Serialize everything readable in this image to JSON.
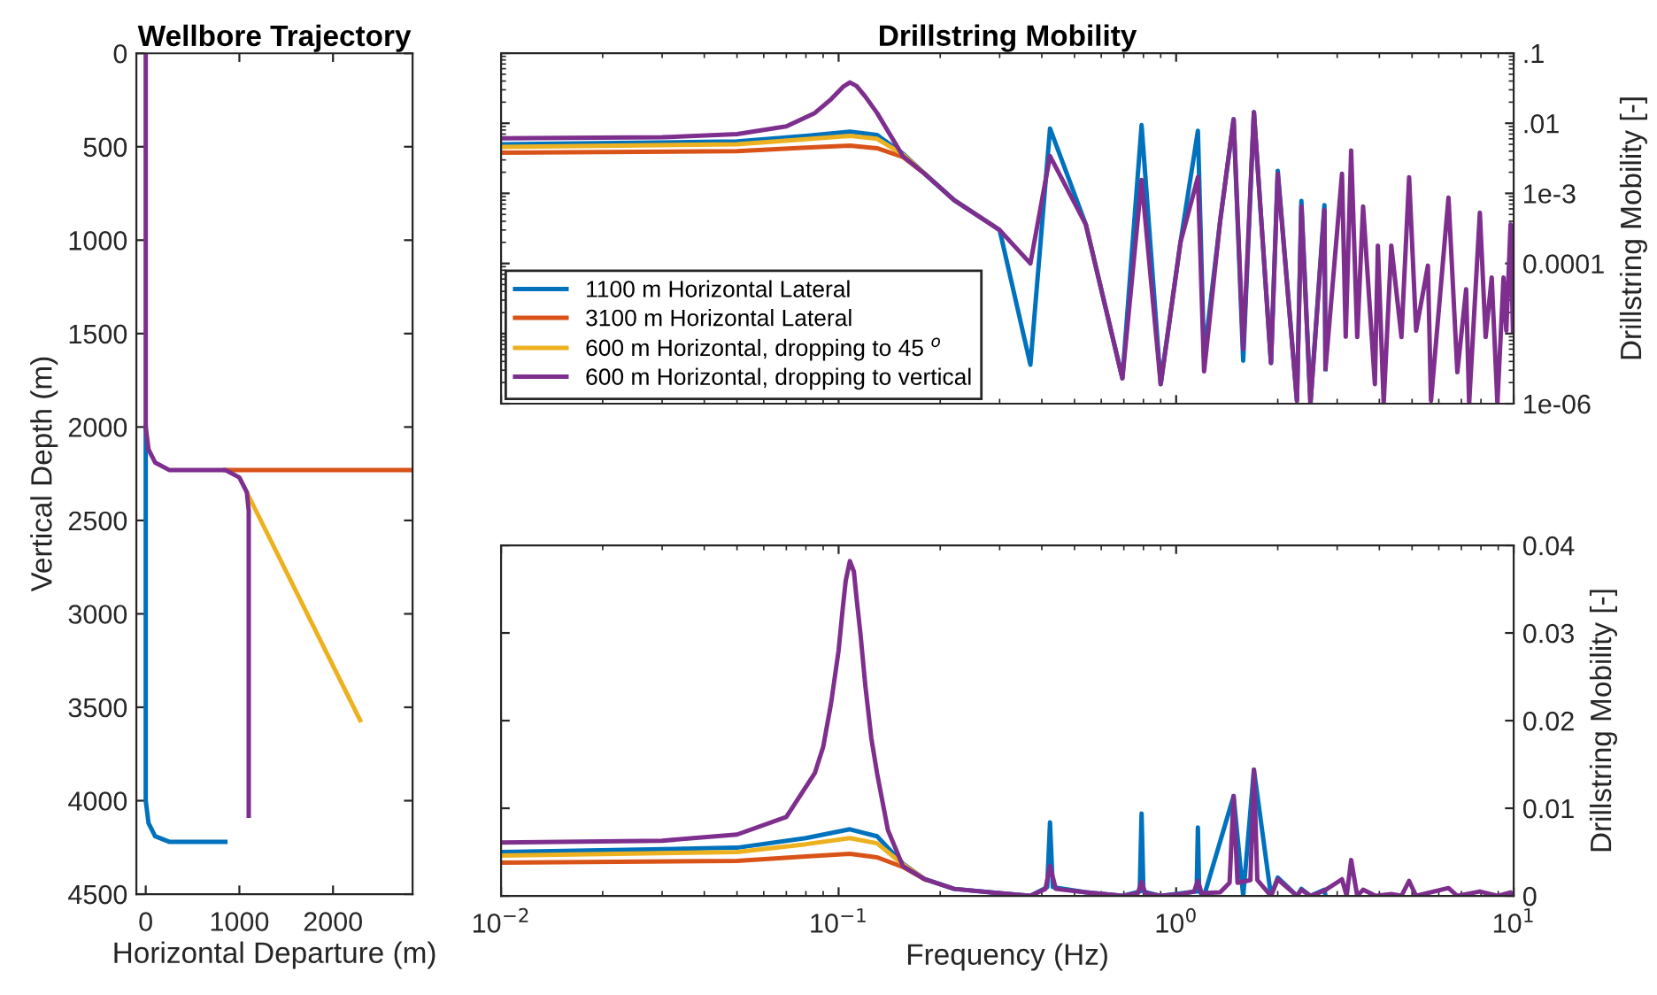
{
  "chart_data": [
    {
      "type": "line",
      "title": "Wellbore Trajectory",
      "xlabel": "Horizontal Departure (m)",
      "ylabel": "Vertical Depth (m)",
      "xlim": [
        -100,
        2850
      ],
      "ylim": [
        4500,
        0
      ],
      "xticks": [
        0,
        1000,
        2000
      ],
      "yticks": [
        0,
        500,
        1000,
        1500,
        2000,
        2500,
        3000,
        3500,
        4000,
        4500
      ],
      "grid": false,
      "legend": false,
      "series": [
        {
          "color": "#0072bd",
          "x": [
            0,
            0,
            30,
            100,
            250,
            850
          ],
          "values": [
            2000,
            4000,
            4120,
            4190,
            4220,
            4220
          ]
        },
        {
          "color": "#d95319",
          "x": [
            850,
            2850
          ],
          "values": [
            2230,
            2230
          ]
        },
        {
          "color": "#edb120",
          "x": [
            1080,
            2290
          ],
          "values": [
            2350,
            3570
          ]
        },
        {
          "color": "#7e2f8e",
          "x": [
            0,
            0,
            30,
            100,
            250,
            850,
            1000,
            1080,
            1100,
            1100
          ],
          "values": [
            0,
            2000,
            2120,
            2190,
            2230,
            2230,
            2270,
            2350,
            2450,
            4080
          ]
        }
      ]
    },
    {
      "type": "line",
      "title": "Drillstring Mobility",
      "y2label": "Drillstring Mobility [-]",
      "log": "xy",
      "xlim": [
        0.01,
        10
      ],
      "ylim": [
        1e-06,
        0.1
      ],
      "xticks": [
        {
          "value": 0.01,
          "label": null
        },
        {
          "value": 0.1,
          "label": null
        },
        {
          "value": 1,
          "label": null
        },
        {
          "value": 10,
          "label": null
        }
      ],
      "yticks": [
        {
          "value": 1e-06,
          "label": "1e-06"
        },
        {
          "value": 1e-05,
          "label": null
        },
        {
          "value": 0.0001,
          "label": "0.0001"
        },
        {
          "value": 0.001,
          "label": "1e-3"
        },
        {
          "value": 0.01,
          "label": ".01"
        },
        {
          "value": 0.1,
          "label": ".1"
        }
      ],
      "tick_labels": "y",
      "grid": false,
      "legend": "bottom left",
      "series": [
        {
          "name": "1100 m Horizontal Lateral",
          "color": "#0072bd",
          "x": [
            0.01,
            0.05,
            0.08,
            0.108,
            0.13,
            0.155,
            0.18,
            0.22,
            0.3,
            0.37,
            0.423,
            0.54,
            0.693,
            0.79,
            0.9,
            1.03,
            1.16,
            1.21,
            1.35,
            1.48,
            1.58,
            1.7,
            1.91,
            2.0,
            2.28,
            2.35,
            2.5,
            2.75,
            2.77
          ],
          "values": [
            0.005,
            0.0055,
            0.0066,
            0.0076,
            0.0068,
            0.0037,
            0.0019,
            0.0008,
            0.0003,
            3.6e-06,
            0.0084,
            0.00036,
            2.3e-06,
            0.0094,
            1.9e-06,
            0.0002,
            0.0078,
            4.6e-06,
            0.0004,
            0.0114,
            4.1e-06,
            0.0144,
            3.8e-06,
            0.0021,
            1.1e-06,
            0.00078,
            1e-06,
            0.00068,
            3.1e-06
          ]
        },
        {
          "name": "3100 m Horizontal Lateral",
          "color": "#d95319",
          "x": [
            0.01,
            0.05,
            0.08,
            0.108,
            0.13,
            0.155,
            0.18
          ],
          "values": [
            0.0038,
            0.004,
            0.0045,
            0.0048,
            0.0044,
            0.0033,
            0.0019
          ]
        },
        {
          "name": "600 m Horizontal, dropping to 45 $^{o}$",
          "color": "#edb120",
          "x": [
            0.01,
            0.05,
            0.08,
            0.108,
            0.13,
            0.155,
            0.18
          ],
          "values": [
            0.0046,
            0.005,
            0.0059,
            0.0066,
            0.006,
            0.0036,
            0.0019
          ]
        },
        {
          "name": "600 m Horizontal, dropping to vertical",
          "color": "#7e2f8e",
          "x": [
            0.01,
            0.03,
            0.05,
            0.07,
            0.085,
            0.095,
            0.103,
            0.108,
            0.113,
            0.12,
            0.13,
            0.155,
            0.18,
            0.22,
            0.3,
            0.37,
            0.423,
            0.54,
            0.693,
            0.79,
            0.9,
            1.03,
            1.16,
            1.21,
            1.35,
            1.48,
            1.58,
            1.7,
            1.91,
            2.0,
            2.28,
            2.35,
            2.5,
            2.75,
            2.77,
            3.1,
            3.18,
            3.3,
            3.44,
            3.58,
            3.88,
            3.96,
            4.12,
            4.34,
            4.65,
            4.9,
            5.14,
            5.57,
            5.69,
            6.41,
            6.81,
            7.23,
            7.38,
            7.94,
            8.26,
            8.61,
            8.95,
            9.33,
            9.51,
            9.79,
            9.95
          ],
          "values": [
            0.0061,
            0.0063,
            0.007,
            0.009,
            0.014,
            0.022,
            0.033,
            0.0382,
            0.034,
            0.024,
            0.014,
            0.0034,
            0.0019,
            0.0008,
            0.0003,
            0.0001,
            0.0034,
            0.00036,
            2.3e-06,
            0.00155,
            1.9e-06,
            0.0002,
            0.0017,
            2.9e-06,
            0.0004,
            0.0114,
            6e-06,
            0.0144,
            3.8e-06,
            0.0019,
            1.1e-06,
            0.00065,
            1e-06,
            0.00058,
            3.1e-06,
            0.0019,
            9e-06,
            0.0041,
            8.9e-06,
            0.00065,
            1.9e-06,
            0.00018,
            1e-06,
            0.00018,
            8.9e-06,
            0.0017,
            1.1e-05,
            9.3e-05,
            1.1e-06,
            0.00087,
            2.8e-06,
            4.3e-05,
            1e-06,
            0.00053,
            8.9e-06,
            6.3e-05,
            1e-06,
            6.3e-05,
            1.1e-05,
            0.00036,
            1.1e-05
          ]
        }
      ]
    },
    {
      "type": "line",
      "xlabel": "Frequency (Hz)",
      "y2label": "Drillstring Mobility [-]",
      "log": "x",
      "xlim": [
        0.01,
        10
      ],
      "ylim": [
        0,
        0.04
      ],
      "xticks": [
        {
          "value": 0.01,
          "label": "10$^{−2}$"
        },
        {
          "value": 0.1,
          "label": "10$^{−1}$"
        },
        {
          "value": 1,
          "label": "10$^{0}$"
        },
        {
          "value": 10,
          "label": "10$^{1}$"
        }
      ],
      "yticks": [
        0,
        0.01,
        0.02,
        0.03,
        0.04
      ],
      "grid": false,
      "legend": false,
      "series": [
        {
          "color": "#0072bd",
          "x": [
            0.01,
            0.05,
            0.08,
            0.108,
            0.13,
            0.155,
            0.18,
            0.22,
            0.3,
            0.37,
            0.415,
            0.423,
            0.431,
            0.54,
            0.693,
            0.78,
            0.79,
            0.8,
            0.9,
            1.15,
            1.16,
            1.17,
            1.21,
            1.48,
            1.58,
            1.7,
            1.91,
            2.0,
            2.28,
            2.35,
            2.5,
            2.75,
            2.77
          ],
          "values": [
            0.005,
            0.0055,
            0.0066,
            0.0076,
            0.0068,
            0.0037,
            0.0019,
            0.0008,
            0.0003,
            0,
            0.001,
            0.0084,
            0.001,
            0.0004,
            0,
            0.0005,
            0.0094,
            0.0005,
            0,
            0.0005,
            0.0078,
            0.0005,
            0,
            0.0114,
            0,
            0.0144,
            0,
            0.0021,
            0,
            0.0008,
            0,
            0.0007,
            0
          ]
        },
        {
          "color": "#d95319",
          "x": [
            0.01,
            0.05,
            0.08,
            0.108,
            0.13,
            0.155,
            0.18
          ],
          "values": [
            0.0038,
            0.004,
            0.0045,
            0.0048,
            0.0044,
            0.0033,
            0.0019
          ]
        },
        {
          "color": "#edb120",
          "x": [
            0.01,
            0.05,
            0.08,
            0.108,
            0.13,
            0.155,
            0.18
          ],
          "values": [
            0.0046,
            0.005,
            0.0059,
            0.0066,
            0.006,
            0.0036,
            0.0019
          ]
        },
        {
          "color": "#7e2f8e",
          "x": [
            0.01,
            0.03,
            0.05,
            0.07,
            0.085,
            0.09,
            0.095,
            0.1,
            0.103,
            0.105,
            0.108,
            0.111,
            0.113,
            0.116,
            0.12,
            0.125,
            0.13,
            0.14,
            0.155,
            0.18,
            0.22,
            0.3,
            0.37,
            0.41,
            0.423,
            0.44,
            0.54,
            0.693,
            0.77,
            0.79,
            0.81,
            0.9,
            1.03,
            1.13,
            1.16,
            1.19,
            1.35,
            1.44,
            1.48,
            1.52,
            1.66,
            1.7,
            1.74,
            1.91,
            2.0,
            2.28,
            2.35,
            2.5,
            2.75,
            3.1,
            3.2,
            3.3,
            3.44,
            3.58,
            3.9,
            4.34,
            4.65,
            4.9,
            5.14,
            6.41,
            6.81,
            7.94,
            8.95,
            9.79,
            9.95
          ],
          "values": [
            0.0061,
            0.0063,
            0.007,
            0.009,
            0.014,
            0.017,
            0.022,
            0.028,
            0.033,
            0.036,
            0.0382,
            0.037,
            0.034,
            0.03,
            0.024,
            0.018,
            0.014,
            0.0075,
            0.0034,
            0.0019,
            0.0008,
            0.0003,
            0,
            0.0008,
            0.0034,
            0.0008,
            0.0004,
            0,
            0.0003,
            0.0016,
            0.0003,
            0,
            0.0002,
            0.0005,
            0.0017,
            0.0003,
            0.0004,
            0.0015,
            0.0114,
            0.0015,
            0.0018,
            0.0144,
            0.0018,
            0,
            0.0019,
            0,
            0.0007,
            0,
            0.0006,
            0.0019,
            0,
            0.0041,
            0,
            0.0007,
            0,
            0.0002,
            0,
            0.0017,
            0,
            0.0009,
            0,
            0.0005,
            0,
            0.0004,
            0
          ]
        }
      ]
    }
  ]
}
